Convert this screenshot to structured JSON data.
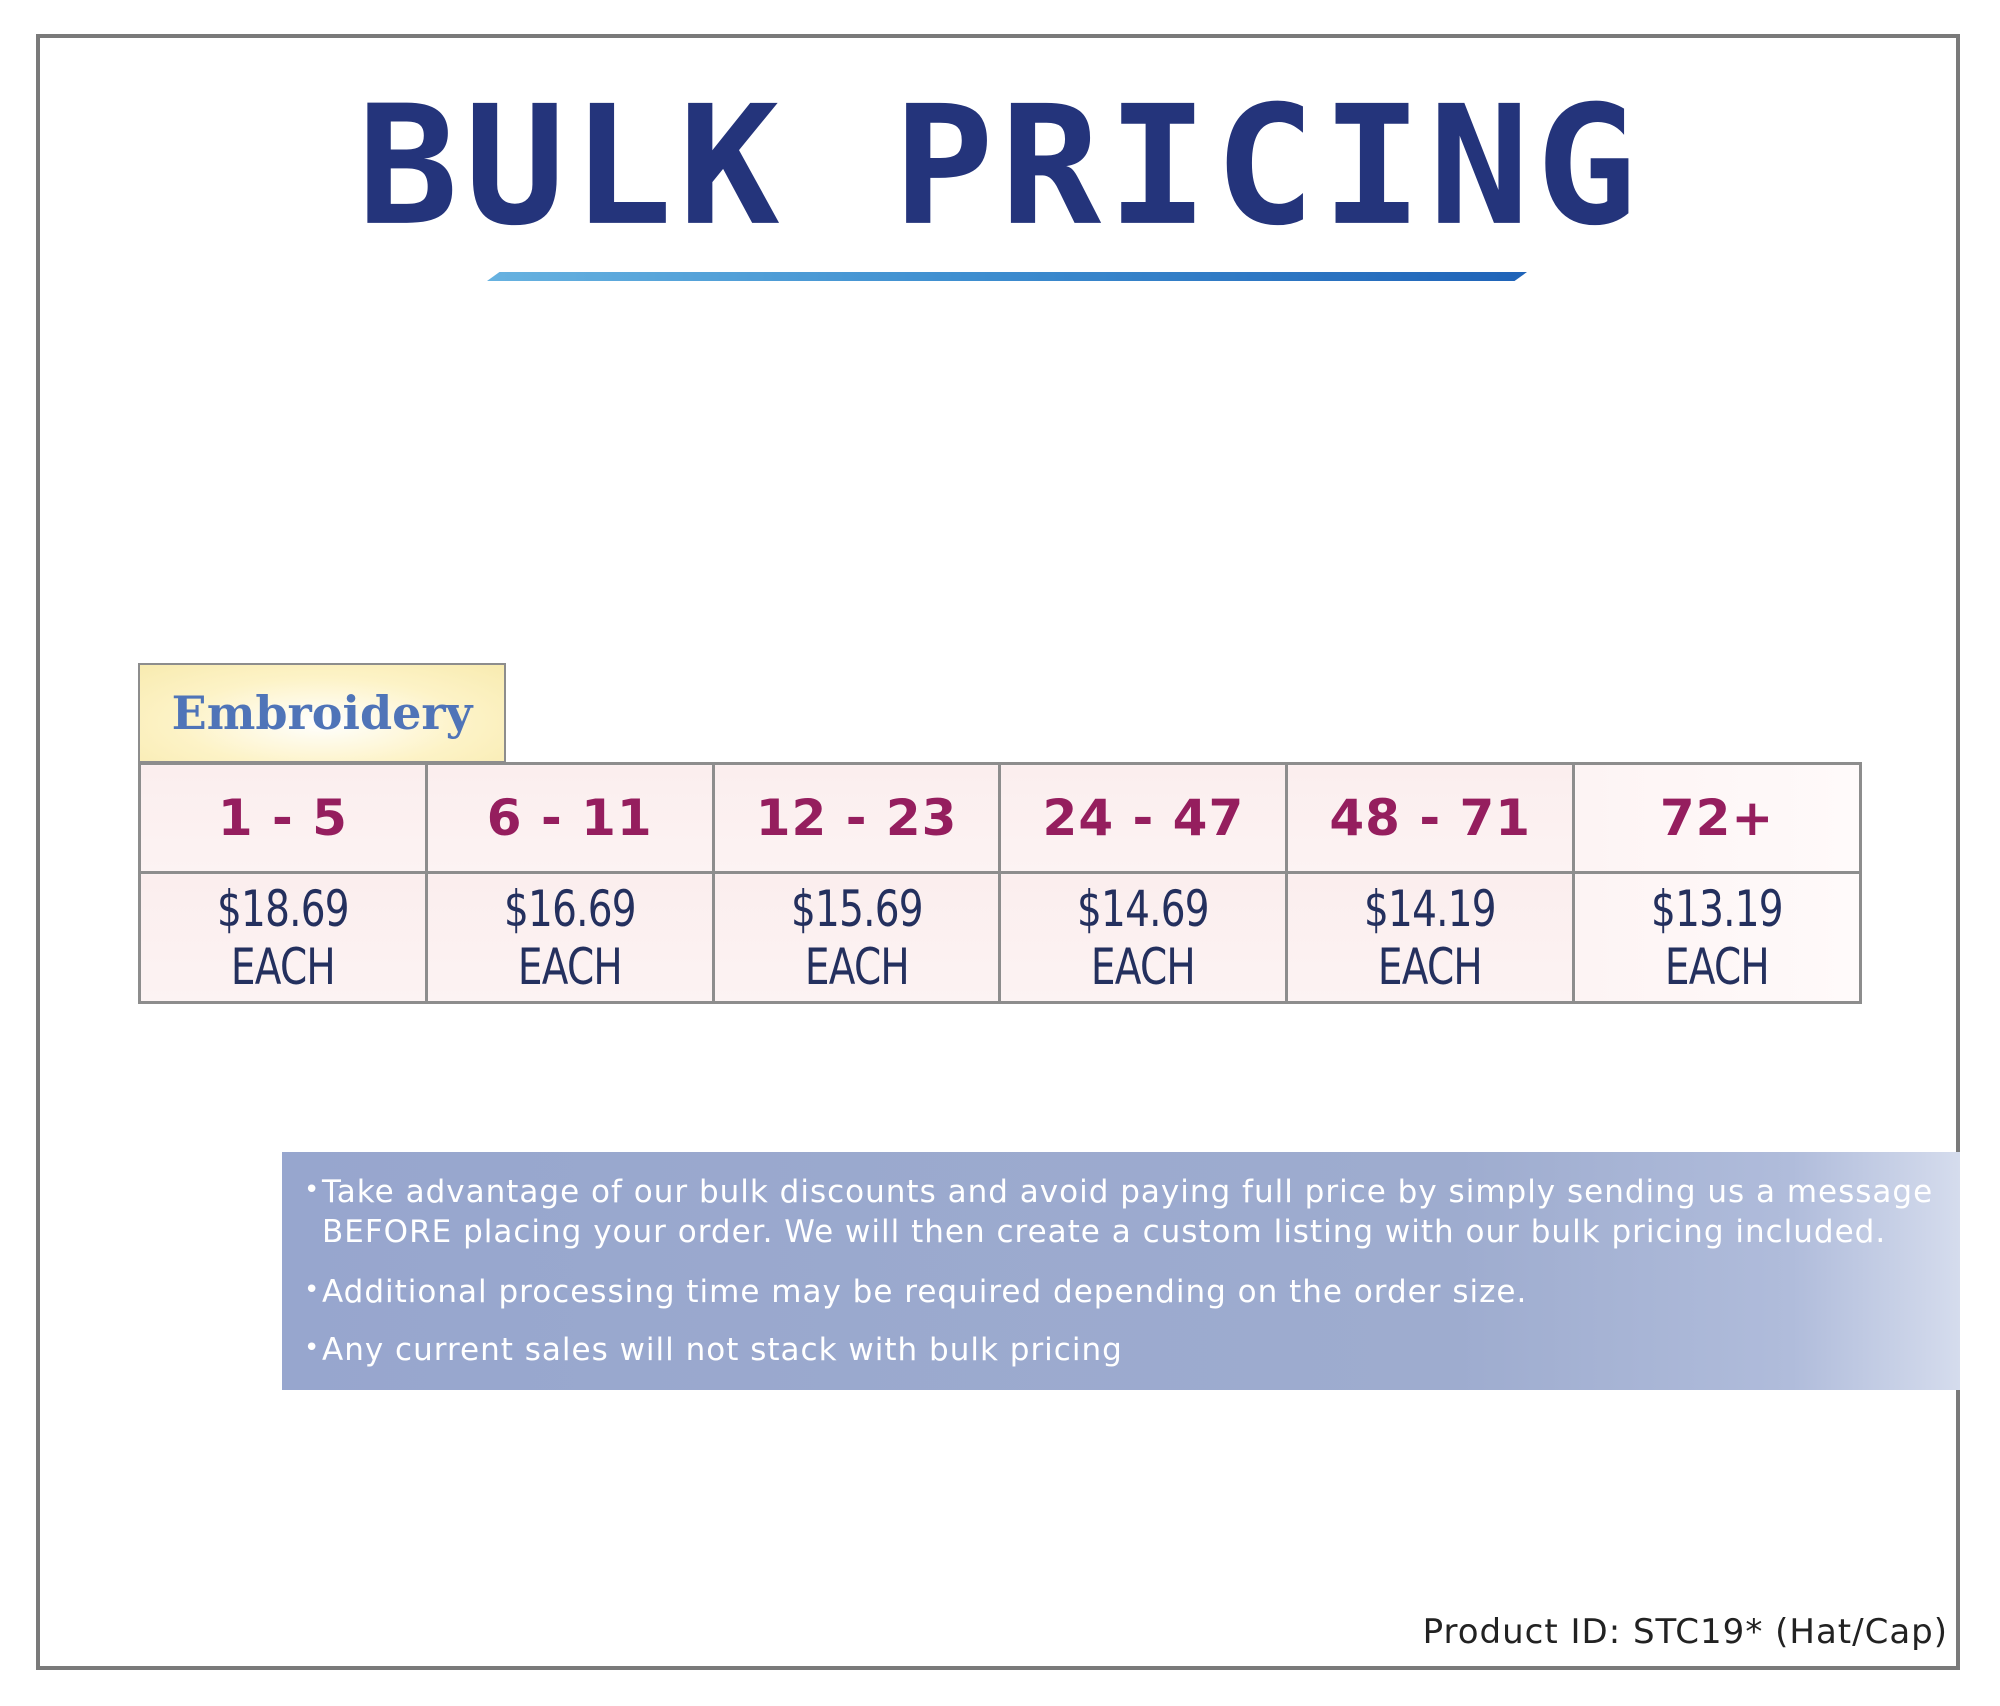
{
  "title": "BULK PRICING",
  "colors": {
    "title": "#24347b",
    "quantity_text": "#951e5e",
    "price_text": "#24305e",
    "category_text": "#4f74b8",
    "notes_background": "#97a6ce"
  },
  "category": "Embroidery",
  "pricing": {
    "quantities": [
      "1 - 5",
      "6 - 11",
      "12 - 23",
      "24 - 47",
      "48 - 71",
      "72+"
    ],
    "prices": [
      "$18.69 EACH",
      "$16.69 EACH",
      "$15.69 EACH",
      "$14.69 EACH",
      "$14.19 EACH",
      "$13.19 EACH"
    ]
  },
  "notes": {
    "bullet": "•",
    "items": [
      "Take advantage of our bulk discounts and avoid paying full price by simply sending us a message BEFORE placing your order. We will then create a custom listing with our bulk pricing included.",
      "Additional processing time may be required depending on the order size.",
      "Any current sales will not stack with bulk pricing"
    ]
  },
  "product_id": "Product ID: STC19* (Hat/Cap)"
}
